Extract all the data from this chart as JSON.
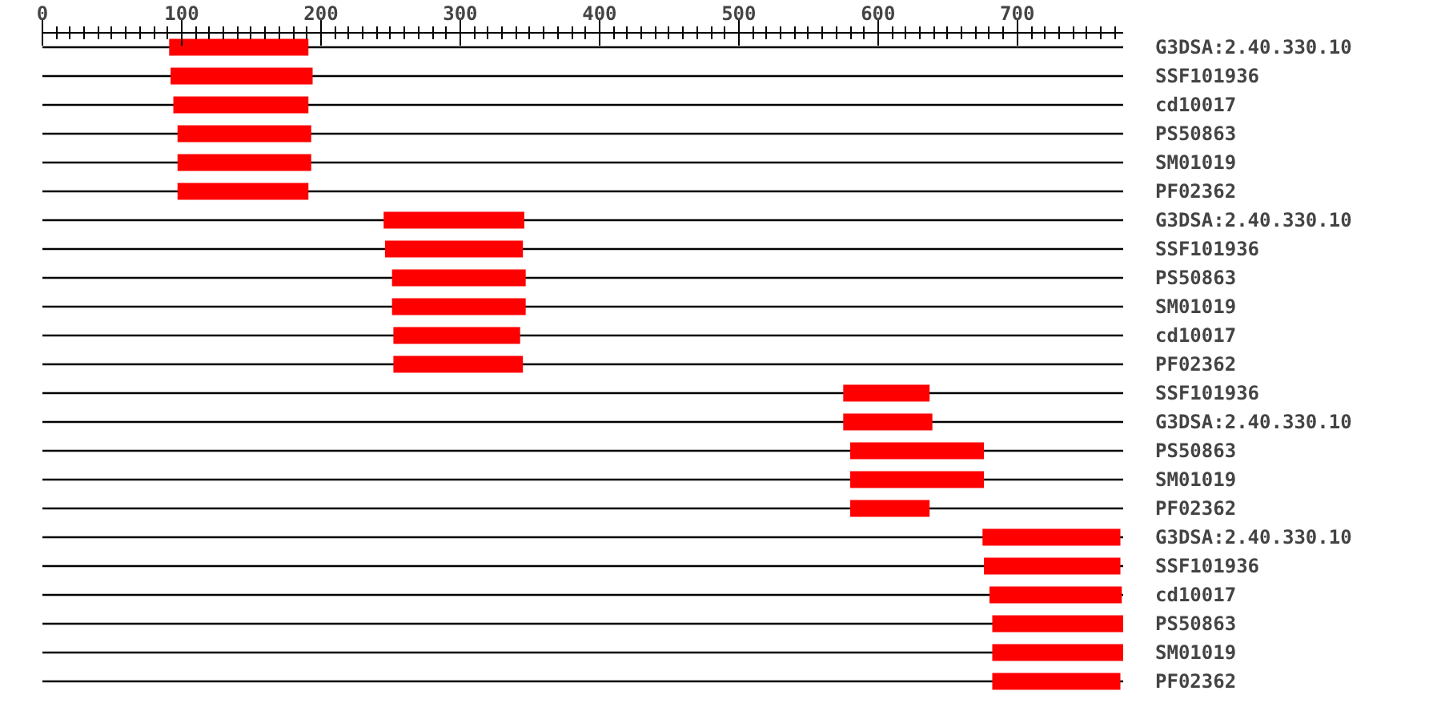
{
  "chart_data": {
    "type": "bar",
    "orientation": "horizontal",
    "color": "#ff0000",
    "grid": "y",
    "categories": [
      "G3DSA:2.40.330.10",
      "SSF101936",
      "cd10017",
      "PS50863",
      "SM01019",
      "PF02362",
      "G3DSA:2.40.330.10",
      "SSF101936",
      "PS50863",
      "SM01019",
      "cd10017",
      "PF02362",
      "SSF101936",
      "G3DSA:2.40.330.10",
      "PS50863",
      "SM01019",
      "PF02362",
      "G3DSA:2.40.330.10",
      "SSF101936",
      "cd10017",
      "PS50863",
      "SM01019",
      "PF02362"
    ],
    "base": [
      91,
      92,
      94,
      97,
      97,
      97,
      245,
      246,
      251,
      251,
      252,
      252,
      575,
      575,
      580,
      580,
      580,
      675,
      676,
      680,
      682,
      682,
      682
    ],
    "values": [
      100,
      102,
      97,
      96,
      96,
      94,
      101,
      99,
      96,
      96,
      91,
      93,
      62,
      64,
      96,
      96,
      57,
      99,
      98,
      95,
      94,
      94,
      92
    ],
    "xlim": [
      0,
      776
    ],
    "xticks": [
      0,
      {
        "value": 10,
        "label": null
      },
      {
        "value": 20,
        "label": null
      },
      {
        "value": 30,
        "label": null
      },
      {
        "value": 40,
        "label": null
      },
      {
        "value": 50,
        "label": null
      },
      {
        "value": 60,
        "label": null
      },
      {
        "value": 70,
        "label": null
      },
      {
        "value": 80,
        "label": null
      },
      {
        "value": 90,
        "label": null
      },
      100,
      {
        "value": 110,
        "label": null
      },
      {
        "value": 120,
        "label": null
      },
      {
        "value": 130,
        "label": null
      },
      {
        "value": 140,
        "label": null
      },
      {
        "value": 150,
        "label": null
      },
      {
        "value": 160,
        "label": null
      },
      {
        "value": 170,
        "label": null
      },
      {
        "value": 180,
        "label": null
      },
      {
        "value": 190,
        "label": null
      },
      200,
      {
        "value": 210,
        "label": null
      },
      {
        "value": 220,
        "label": null
      },
      {
        "value": 230,
        "label": null
      },
      {
        "value": 240,
        "label": null
      },
      {
        "value": 250,
        "label": null
      },
      {
        "value": 260,
        "label": null
      },
      {
        "value": 270,
        "label": null
      },
      {
        "value": 280,
        "label": null
      },
      {
        "value": 290,
        "label": null
      },
      300,
      {
        "value": 310,
        "label": null
      },
      {
        "value": 320,
        "label": null
      },
      {
        "value": 330,
        "label": null
      },
      {
        "value": 340,
        "label": null
      },
      {
        "value": 350,
        "label": null
      },
      {
        "value": 360,
        "label": null
      },
      {
        "value": 370,
        "label": null
      },
      {
        "value": 380,
        "label": null
      },
      {
        "value": 390,
        "label": null
      },
      400,
      {
        "value": 410,
        "label": null
      },
      {
        "value": 420,
        "label": null
      },
      {
        "value": 430,
        "label": null
      },
      {
        "value": 440,
        "label": null
      },
      {
        "value": 450,
        "label": null
      },
      {
        "value": 460,
        "label": null
      },
      {
        "value": 470,
        "label": null
      },
      {
        "value": 480,
        "label": null
      },
      {
        "value": 490,
        "label": null
      },
      500,
      {
        "value": 510,
        "label": null
      },
      {
        "value": 520,
        "label": null
      },
      {
        "value": 530,
        "label": null
      },
      {
        "value": 540,
        "label": null
      },
      {
        "value": 550,
        "label": null
      },
      {
        "value": 560,
        "label": null
      },
      {
        "value": 570,
        "label": null
      },
      {
        "value": 580,
        "label": null
      },
      {
        "value": 590,
        "label": null
      },
      600,
      {
        "value": 610,
        "label": null
      },
      {
        "value": 620,
        "label": null
      },
      {
        "value": 630,
        "label": null
      },
      {
        "value": 640,
        "label": null
      },
      {
        "value": 650,
        "label": null
      },
      {
        "value": 660,
        "label": null
      },
      {
        "value": 670,
        "label": null
      },
      {
        "value": 680,
        "label": null
      },
      {
        "value": 690,
        "label": null
      },
      700,
      {
        "value": 710,
        "label": null
      },
      {
        "value": 720,
        "label": null
      },
      {
        "value": 730,
        "label": null
      },
      {
        "value": 740,
        "label": null
      },
      {
        "value": 750,
        "label": null
      },
      {
        "value": 760,
        "label": null
      },
      {
        "value": 770,
        "label": null
      }
    ]
  }
}
